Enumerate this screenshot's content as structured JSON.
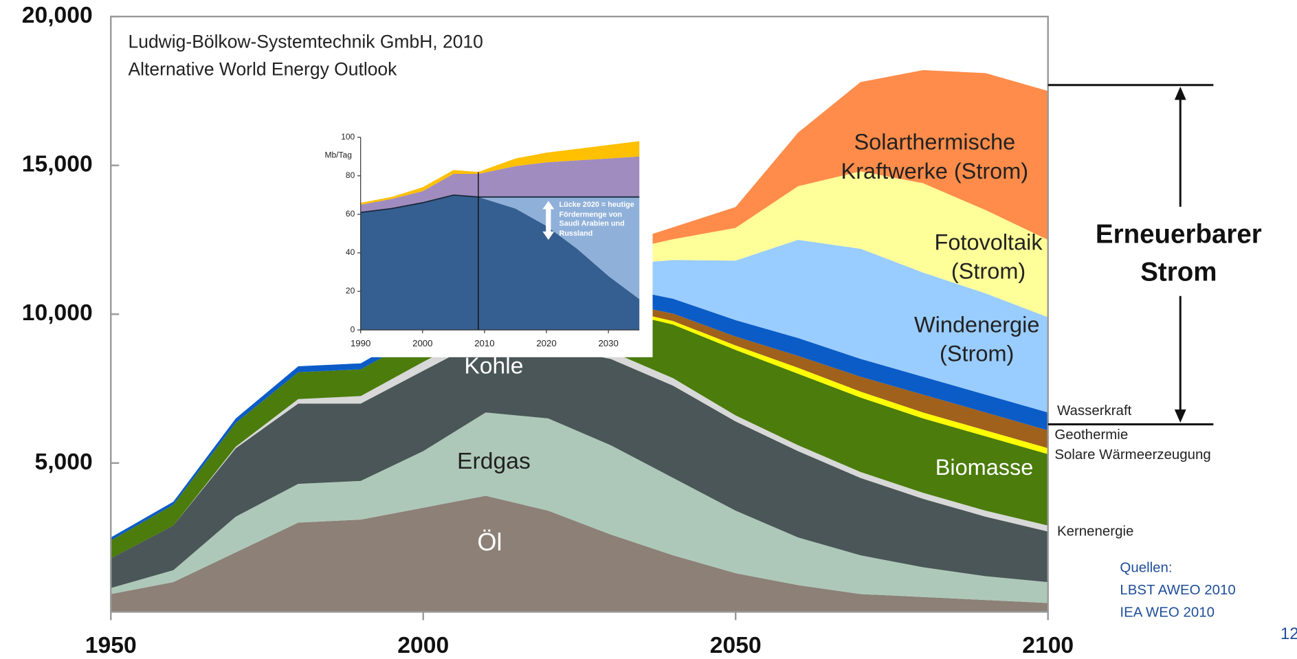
{
  "chart_data": [
    {
      "type": "stacked_area",
      "title": "Ludwig-Bölkow-Systemtechnik GmbH, 2010",
      "subtitle": "Alternative World Energy Outlook",
      "x": [
        1950,
        1960,
        1970,
        1980,
        1990,
        2000,
        2010,
        2020,
        2030,
        2040,
        2050,
        2060,
        2070,
        2080,
        2090,
        2100
      ],
      "series": [
        {
          "name": "Öl",
          "color": "#8c8077",
          "values": [
            600,
            1000,
            2000,
            3000,
            3100,
            3500,
            3900,
            3400,
            2600,
            1900,
            1300,
            900,
            600,
            500,
            400,
            300
          ]
        },
        {
          "name": "Erdgas",
          "color": "#adc8b8",
          "values": [
            200,
            400,
            1200,
            1300,
            1300,
            1900,
            2800,
            3100,
            3000,
            2600,
            2100,
            1600,
            1300,
            1000,
            800,
            700
          ]
        },
        {
          "name": "Kohle",
          "color": "#4a5657",
          "values": [
            1000,
            1500,
            2300,
            2700,
            2600,
            2700,
            2500,
            2400,
            2900,
            3100,
            3000,
            2900,
            2600,
            2300,
            2000,
            1700
          ]
        },
        {
          "name": "Kernenergie",
          "color": "#d8d8d8",
          "values": [
            0,
            0,
            50,
            150,
            250,
            300,
            300,
            300,
            250,
            250,
            200,
            200,
            200,
            200,
            200,
            200
          ]
        },
        {
          "name": "Biomasse",
          "color": "#4b7c0c",
          "values": [
            600,
            700,
            800,
            900,
            900,
            900,
            1000,
            1200,
            1400,
            1800,
            2200,
            2400,
            2500,
            2500,
            2500,
            2400
          ]
        },
        {
          "name": "Solare Wärmeerzeugung",
          "color": "#ffff00",
          "values": [
            0,
            0,
            0,
            0,
            0,
            0,
            0,
            50,
            100,
            120,
            150,
            200,
            200,
            200,
            200,
            200
          ]
        },
        {
          "name": "Geothermie",
          "color": "#a0611c",
          "values": [
            0,
            0,
            0,
            0,
            0,
            0,
            0,
            100,
            200,
            250,
            300,
            400,
            500,
            600,
            600,
            600
          ]
        },
        {
          "name": "Wasserkraft",
          "color": "#0b5cc7",
          "values": [
            100,
            100,
            150,
            200,
            200,
            250,
            300,
            400,
            500,
            500,
            550,
            600,
            600,
            600,
            600,
            600
          ]
        },
        {
          "name": "Windenergie (Strom)",
          "color": "#99ccff",
          "values": [
            0,
            0,
            0,
            0,
            0,
            0,
            50,
            300,
            700,
            1300,
            2000,
            3300,
            3700,
            3500,
            3400,
            3200
          ]
        },
        {
          "name": "Fotovoltaik (Strom)",
          "color": "#ffff99",
          "values": [
            0,
            0,
            0,
            0,
            0,
            0,
            50,
            200,
            400,
            700,
            1100,
            1800,
            2600,
            3000,
            2800,
            2600
          ]
        },
        {
          "name": "Solarthermische Kraftwerke (Strom)",
          "color": "#ff8c4a",
          "values": [
            0,
            0,
            0,
            0,
            0,
            0,
            0,
            100,
            200,
            400,
            700,
            1800,
            3000,
            3800,
            4600,
            5000
          ]
        }
      ],
      "xlim": [
        1950,
        2100
      ],
      "xticks": [
        1950,
        2000,
        2050,
        2100
      ],
      "ylim": [
        0,
        20000
      ],
      "yticks": [
        {
          "value": 5000,
          "label": "5,000"
        },
        {
          "value": 10000,
          "label": "10,000"
        },
        {
          "value": 15000,
          "label": "15,000"
        },
        {
          "value": 20000,
          "label": "20,000"
        }
      ],
      "bracket_range": [
        6300,
        17700
      ],
      "annotation": "Erneuerbarer Strom"
    },
    {
      "type": "stacked_area",
      "y_label": "Mb/Tag",
      "x": [
        1990,
        1995,
        2000,
        2005,
        2009,
        2015,
        2020,
        2025,
        2030,
        2035
      ],
      "series": [
        {
          "color": "#355f91",
          "values": [
            61,
            63,
            66,
            70,
            69,
            63,
            54,
            42,
            28,
            16
          ]
        },
        {
          "color": "#8fb0d9",
          "values": [
            0,
            0,
            0,
            0,
            0,
            6,
            15,
            27,
            41,
            53
          ]
        },
        {
          "color": "#a08cbf",
          "values": [
            4,
            5,
            6,
            11,
            12,
            16,
            18,
            19,
            20,
            21
          ]
        },
        {
          "color": "#ffc000",
          "values": [
            1,
            1,
            2,
            2,
            1,
            4,
            5,
            6,
            7,
            8
          ]
        }
      ],
      "xlim": [
        1990,
        2035
      ],
      "xticks": [
        1990,
        2000,
        2010,
        2020,
        2030
      ],
      "ylim": [
        0,
        100
      ],
      "yticks": [
        0,
        20,
        40,
        60,
        80,
        100
      ],
      "vline": 2009,
      "annotation": "Lücke 2020 = heutige Fördermenge von Saudi Arabien und Russland"
    }
  ],
  "sources": {
    "heading": "Quellen:",
    "items": [
      "LBST AWEO 2010",
      "IEA WEO 2010"
    ]
  },
  "page_number": "12"
}
